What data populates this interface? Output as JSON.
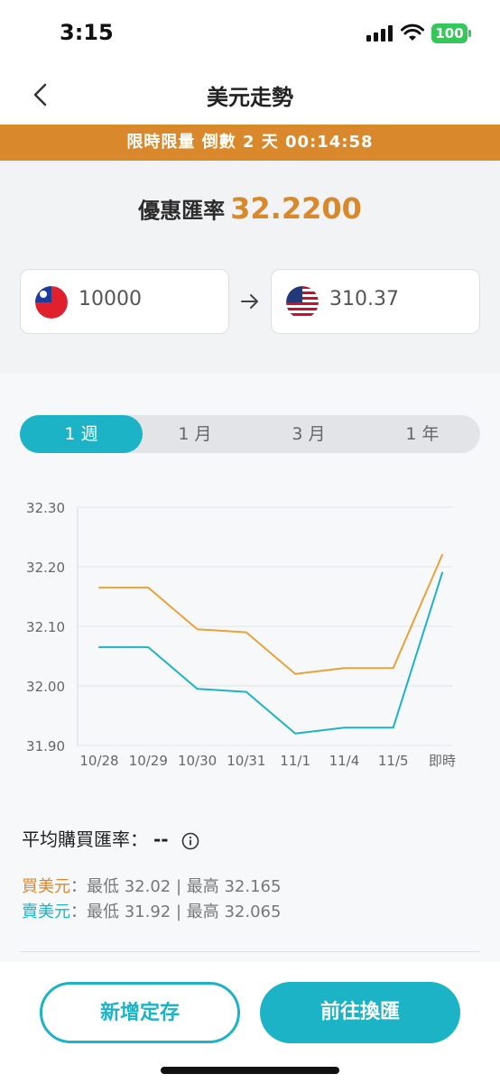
{
  "status": {
    "time": "3:15",
    "battery": "100"
  },
  "nav": {
    "title": "美元走勢"
  },
  "promo": {
    "text": "限時限量 倒數 2 天 00:14:58"
  },
  "rate": {
    "label": "優惠匯率",
    "value": "32.2200"
  },
  "converter": {
    "from_amount": "10000",
    "to_amount": "310.37"
  },
  "tabs": [
    {
      "label": "1 週",
      "active": true
    },
    {
      "label": "1 月",
      "active": false
    },
    {
      "label": "3 月",
      "active": false
    },
    {
      "label": "1 年",
      "active": false
    }
  ],
  "chart_data": {
    "type": "line",
    "categories": [
      "10/28",
      "10/29",
      "10/30",
      "10/31",
      "11/1",
      "11/4",
      "11/5",
      "即時"
    ],
    "yticks": [
      "32.30",
      "32.20",
      "32.10",
      "32.00",
      "31.90"
    ],
    "ylim": [
      31.9,
      32.3
    ],
    "grid": true,
    "series": [
      {
        "name": "買美元",
        "color": "#e8a23a",
        "values": [
          32.165,
          32.165,
          32.095,
          32.09,
          32.02,
          32.03,
          32.03,
          32.22
        ]
      },
      {
        "name": "賣美元",
        "color": "#1db3c6",
        "values": [
          32.065,
          32.065,
          31.995,
          31.99,
          31.92,
          31.93,
          31.93,
          32.19
        ]
      }
    ]
  },
  "summary": {
    "avg_label": "平均購買匯率：",
    "avg_value": "--",
    "buy_label": "買美元",
    "buy_text": "：最低 32.02 | 最高 32.165",
    "sell_label": "賣美元",
    "sell_text": "：最低 31.92 | 最高 32.065"
  },
  "buttons": {
    "deposit": "新增定存",
    "exchange": "前往換匯"
  },
  "colors": {
    "accent": "#1db3c6",
    "orange": "#d9892b"
  }
}
